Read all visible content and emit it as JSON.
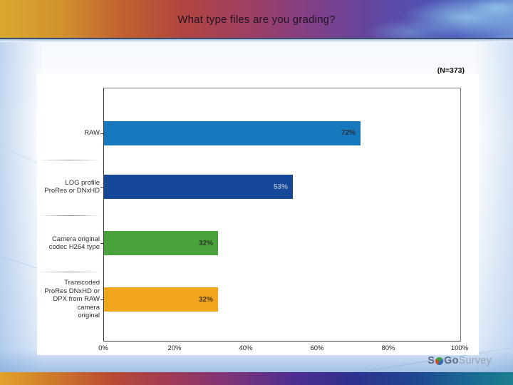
{
  "slide": {
    "title": "What type files are you grading?",
    "sample_size_label": "(N=373)",
    "logo": {
      "prefix": "S",
      "mid": "Go",
      "suffix": "Survey"
    }
  },
  "chart_data": {
    "type": "bar",
    "orientation": "horizontal",
    "title": "What type files are you grading?",
    "annotation": "(N=373)",
    "categories": [
      "RAW",
      "LOG profile ProRes or DNxHD",
      "Camera original codec H264 type",
      "Transcoded ProRes  DNxHD or DPX from RAW camera original"
    ],
    "category_lines": [
      [
        "RAW"
      ],
      [
        "LOG profile",
        "ProRes or DNxHD"
      ],
      [
        "Camera original",
        "codec H264 type"
      ],
      [
        "Transcoded",
        "ProRes  DNxHD or",
        "DPX from RAW",
        "camera",
        "original"
      ]
    ],
    "values": [
      72,
      53,
      32,
      32
    ],
    "value_labels": [
      "72%",
      "53%",
      "32%",
      "32%"
    ],
    "bar_colors": [
      "#1878be",
      "#16489a",
      "#4aa23c",
      "#f1a51c"
    ],
    "value_label_colors": [
      "#24303a",
      "#a2b3ca",
      "#2c3b27",
      "#4c3a12"
    ],
    "xlabel": "",
    "ylabel": "",
    "xlim": [
      0,
      100
    ],
    "x_ticks": [
      {
        "value": 0,
        "label": "0%"
      },
      {
        "value": 20,
        "label": "20%"
      },
      {
        "value": 40,
        "label": "40%"
      },
      {
        "value": 60,
        "label": "60%"
      },
      {
        "value": 80,
        "label": "80%"
      },
      {
        "value": 100,
        "label": "100%"
      }
    ],
    "grid": false,
    "legend": false
  }
}
